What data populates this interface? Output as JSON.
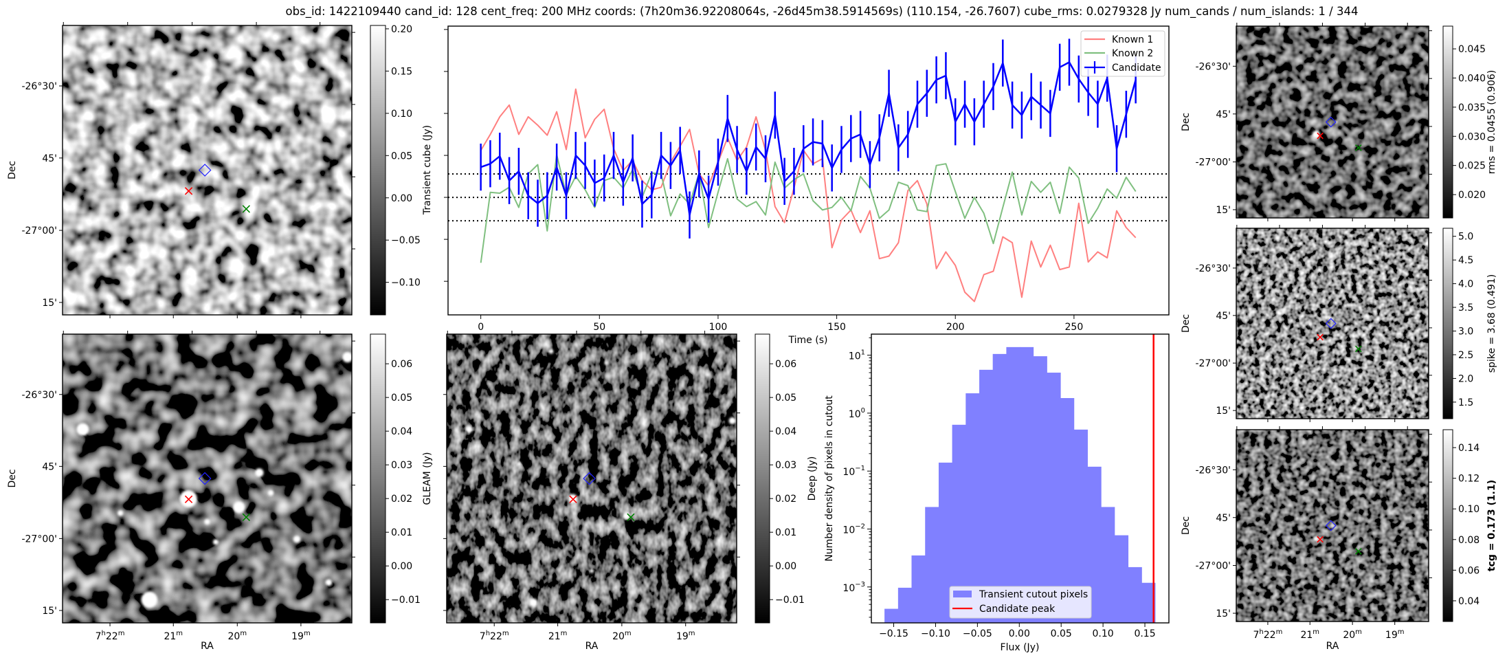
{
  "title": "obs_id: 1422109440 cand_id: 128 cent_freq: 200 MHz coords: (7h20m36.92208064s, -26d45m38.5914569s) (110.154, -26.7607) cube_rms: 0.0279328 Jy num_cands / num_islands: 1 / 344",
  "axes": {
    "dec_label": "Dec",
    "ra_label": "RA",
    "dec_ticks": [
      "-26°30'",
      "45'",
      "-27°00'",
      "15'"
    ],
    "ra_ticks": [
      {
        "hours": "7",
        "h": "h",
        "minutes": "22",
        "m": "m"
      },
      {
        "minutes": "21",
        "m": "m"
      },
      {
        "minutes": "20",
        "m": "m"
      },
      {
        "minutes": "19",
        "m": "m"
      }
    ]
  },
  "panels": {
    "transient": {
      "colorbar_label": "",
      "colorbar_ticks": [
        "0.20",
        "0.15",
        "0.10",
        "0.05",
        "0.00",
        "−0.05",
        "−0.10"
      ],
      "colorbar_range": [
        -0.1385,
        0.204
      ]
    },
    "gleam": {
      "colorbar_label": "GLEAM (Jy)",
      "colorbar_ticks": [
        "0.06",
        "0.05",
        "0.04",
        "0.03",
        "0.02",
        "0.01",
        "0.00",
        "−0.01"
      ],
      "colorbar_range": [
        -0.0169,
        0.0688
      ]
    },
    "deep": {
      "colorbar_label": "Deep (Jy)",
      "colorbar_ticks": [
        "0.06",
        "0.05",
        "0.04",
        "0.03",
        "0.02",
        "0.01",
        "0.00",
        "−0.01"
      ],
      "colorbar_range": [
        -0.0169,
        0.0688
      ]
    },
    "rms": {
      "colorbar_label": "rms = 0.0455 (0.906)",
      "colorbar_ticks": [
        "0.045",
        "0.040",
        "0.035",
        "0.030",
        "0.025",
        "0.020"
      ],
      "colorbar_range": [
        0.016,
        0.0489
      ]
    },
    "spike": {
      "colorbar_label": "spike = 3.68 (0.491)",
      "colorbar_ticks": [
        "5.0",
        "4.5",
        "4.0",
        "3.5",
        "3.0",
        "2.5",
        "2.0",
        "1.5"
      ],
      "colorbar_range": [
        1.15,
        5.17
      ]
    },
    "tcg": {
      "colorbar_label": "tcg = 0.173 (1.1)",
      "colorbar_ticks": [
        "0.14",
        "0.12",
        "0.10",
        "0.08",
        "0.06",
        "0.04"
      ],
      "colorbar_range": [
        0.0265,
        0.1517
      ]
    }
  },
  "colors": {
    "known1": "#ff7f7f",
    "known2": "#7fbf7f",
    "candidate": "#0000ff",
    "hist": "#8080ff",
    "peak": "#ff0000"
  },
  "chart_data": [
    {
      "type": "line",
      "title": "",
      "xlabel": "Time (s)",
      "ylabel": "Transient cube (Jy)",
      "xlim": [
        -13.8,
        290
      ],
      "ylim": [
        -0.14,
        0.204
      ],
      "xticks": [
        "0",
        "50",
        "100",
        "150",
        "200",
        "250"
      ],
      "yticks": [
        -0.1,
        -0.05,
        0.0,
        0.05,
        0.1,
        0.15,
        0.2
      ],
      "hlines": [
        0.0279328,
        0.0,
        -0.0279328
      ],
      "legend": {
        "placement": "top-right",
        "entries": [
          "Known 1",
          "Known 2",
          "Candidate"
        ]
      },
      "x_start": 0,
      "x_step": 4,
      "series": [
        {
          "name": "Known 1",
          "values": [
            0.056,
            0.075,
            0.096,
            0.11,
            0.075,
            0.096,
            0.086,
            0.074,
            0.102,
            0.057,
            0.129,
            0.071,
            0.093,
            0.105,
            0.058,
            0.032,
            0.044,
            0.02,
            0.009,
            0.012,
            0.042,
            0.061,
            0.081,
            0.028,
            0.014,
            0.042,
            0.071,
            0.044,
            0.06,
            0.096,
            0.056,
            -0.011,
            -0.03,
            0.011,
            0.056,
            0.04,
            0.046,
            -0.06,
            -0.027,
            -0.015,
            -0.042,
            -0.016,
            -0.073,
            -0.07,
            -0.054,
            0.008,
            0.02,
            -0.008,
            -0.085,
            -0.065,
            -0.081,
            -0.113,
            -0.124,
            -0.092,
            -0.088,
            -0.047,
            -0.054,
            -0.119,
            -0.052,
            -0.083,
            -0.057,
            -0.086,
            -0.083,
            -0.007,
            -0.077,
            -0.065,
            -0.072,
            -0.016,
            -0.036,
            -0.048
          ]
        },
        {
          "name": "Known 2",
          "values": [
            -0.078,
            0.006,
            0.005,
            0.012,
            -0.012,
            0.028,
            0.039,
            -0.04,
            0.051,
            0.003,
            0.025,
            0.009,
            -0.012,
            0.02,
            0.024,
            0.011,
            0.033,
            0.0,
            0.029,
            0.028,
            -0.022,
            0.004,
            -0.008,
            0.029,
            -0.036,
            0.006,
            0.046,
            -0.002,
            -0.011,
            -0.005,
            -0.021,
            0.042,
            0.011,
            0.021,
            0.028,
            -0.004,
            -0.015,
            -0.012,
            0.0,
            -0.016,
            0.025,
            0.011,
            -0.025,
            -0.015,
            0.018,
            0.014,
            -0.015,
            -0.017,
            0.038,
            0.04,
            0.007,
            -0.025,
            0.0,
            -0.019,
            -0.055,
            -0.012,
            0.03,
            -0.021,
            0.019,
            0.006,
            0.018,
            -0.019,
            0.036,
            0.023,
            -0.031,
            -0.013,
            0.01,
            -0.001,
            0.024,
            0.007
          ]
        },
        {
          "name": "Candidate",
          "yerr": 0.028,
          "values": [
            0.036,
            0.04,
            0.049,
            0.02,
            0.031,
            0.002,
            -0.007,
            0.002,
            0.036,
            0.002,
            0.05,
            0.038,
            0.017,
            0.023,
            0.05,
            0.018,
            0.047,
            -0.008,
            0.003,
            0.05,
            0.038,
            0.056,
            -0.021,
            0.028,
            -0.002,
            0.042,
            0.094,
            0.057,
            0.031,
            0.06,
            0.046,
            0.098,
            0.019,
            0.031,
            0.058,
            0.066,
            0.064,
            0.035,
            0.057,
            0.07,
            0.075,
            0.039,
            0.071,
            0.124,
            0.059,
            0.075,
            0.111,
            0.124,
            0.14,
            0.145,
            0.09,
            0.111,
            0.09,
            0.111,
            0.132,
            0.16,
            0.11,
            0.098,
            0.12,
            0.11,
            0.1,
            0.155,
            0.161,
            0.141,
            0.125,
            0.111,
            0.142,
            0.058,
            0.099,
            0.14
          ]
        }
      ]
    },
    {
      "type": "bar",
      "title": "",
      "xlabel": "Flux (Jy)",
      "ylabel": "Number density of pixels in cutout",
      "yscale": "log",
      "xlim": [
        -0.1767,
        0.1787
      ],
      "ylim": [
        0.00024,
        23.1
      ],
      "xticks": [
        "−0.15",
        "−0.10",
        "−0.05",
        "0.00",
        "0.05",
        "0.10",
        "0.15"
      ],
      "yticks": [
        {
          "base": "10",
          "exp": "−3"
        },
        {
          "base": "10",
          "exp": "−2"
        },
        {
          "base": "10",
          "exp": "−1"
        },
        {
          "base": "10",
          "exp": "0"
        },
        {
          "base": "10",
          "exp": "1"
        }
      ],
      "bin_edges": [
        -0.161,
        -0.1448,
        -0.1287,
        -0.1125,
        -0.0963,
        -0.0802,
        -0.064,
        -0.0478,
        -0.0317,
        -0.0155,
        0.0007,
        0.0168,
        0.033,
        0.0492,
        0.0653,
        0.0815,
        0.0977,
        0.1138,
        0.13,
        0.1462,
        0.1623
      ],
      "values": [
        0.00042,
        0.00097,
        0.0035,
        0.024,
        0.14,
        0.63,
        2.2,
        5.6,
        10.5,
        13.8,
        13.8,
        9.6,
        5.0,
        1.82,
        0.52,
        0.119,
        0.024,
        0.0078,
        0.0022,
        0.00118
      ],
      "candidate_peak": 0.1604,
      "legend": {
        "placement": "lower-center",
        "entries": [
          "Transient cutout pixels",
          "Candidate peak"
        ]
      }
    }
  ]
}
